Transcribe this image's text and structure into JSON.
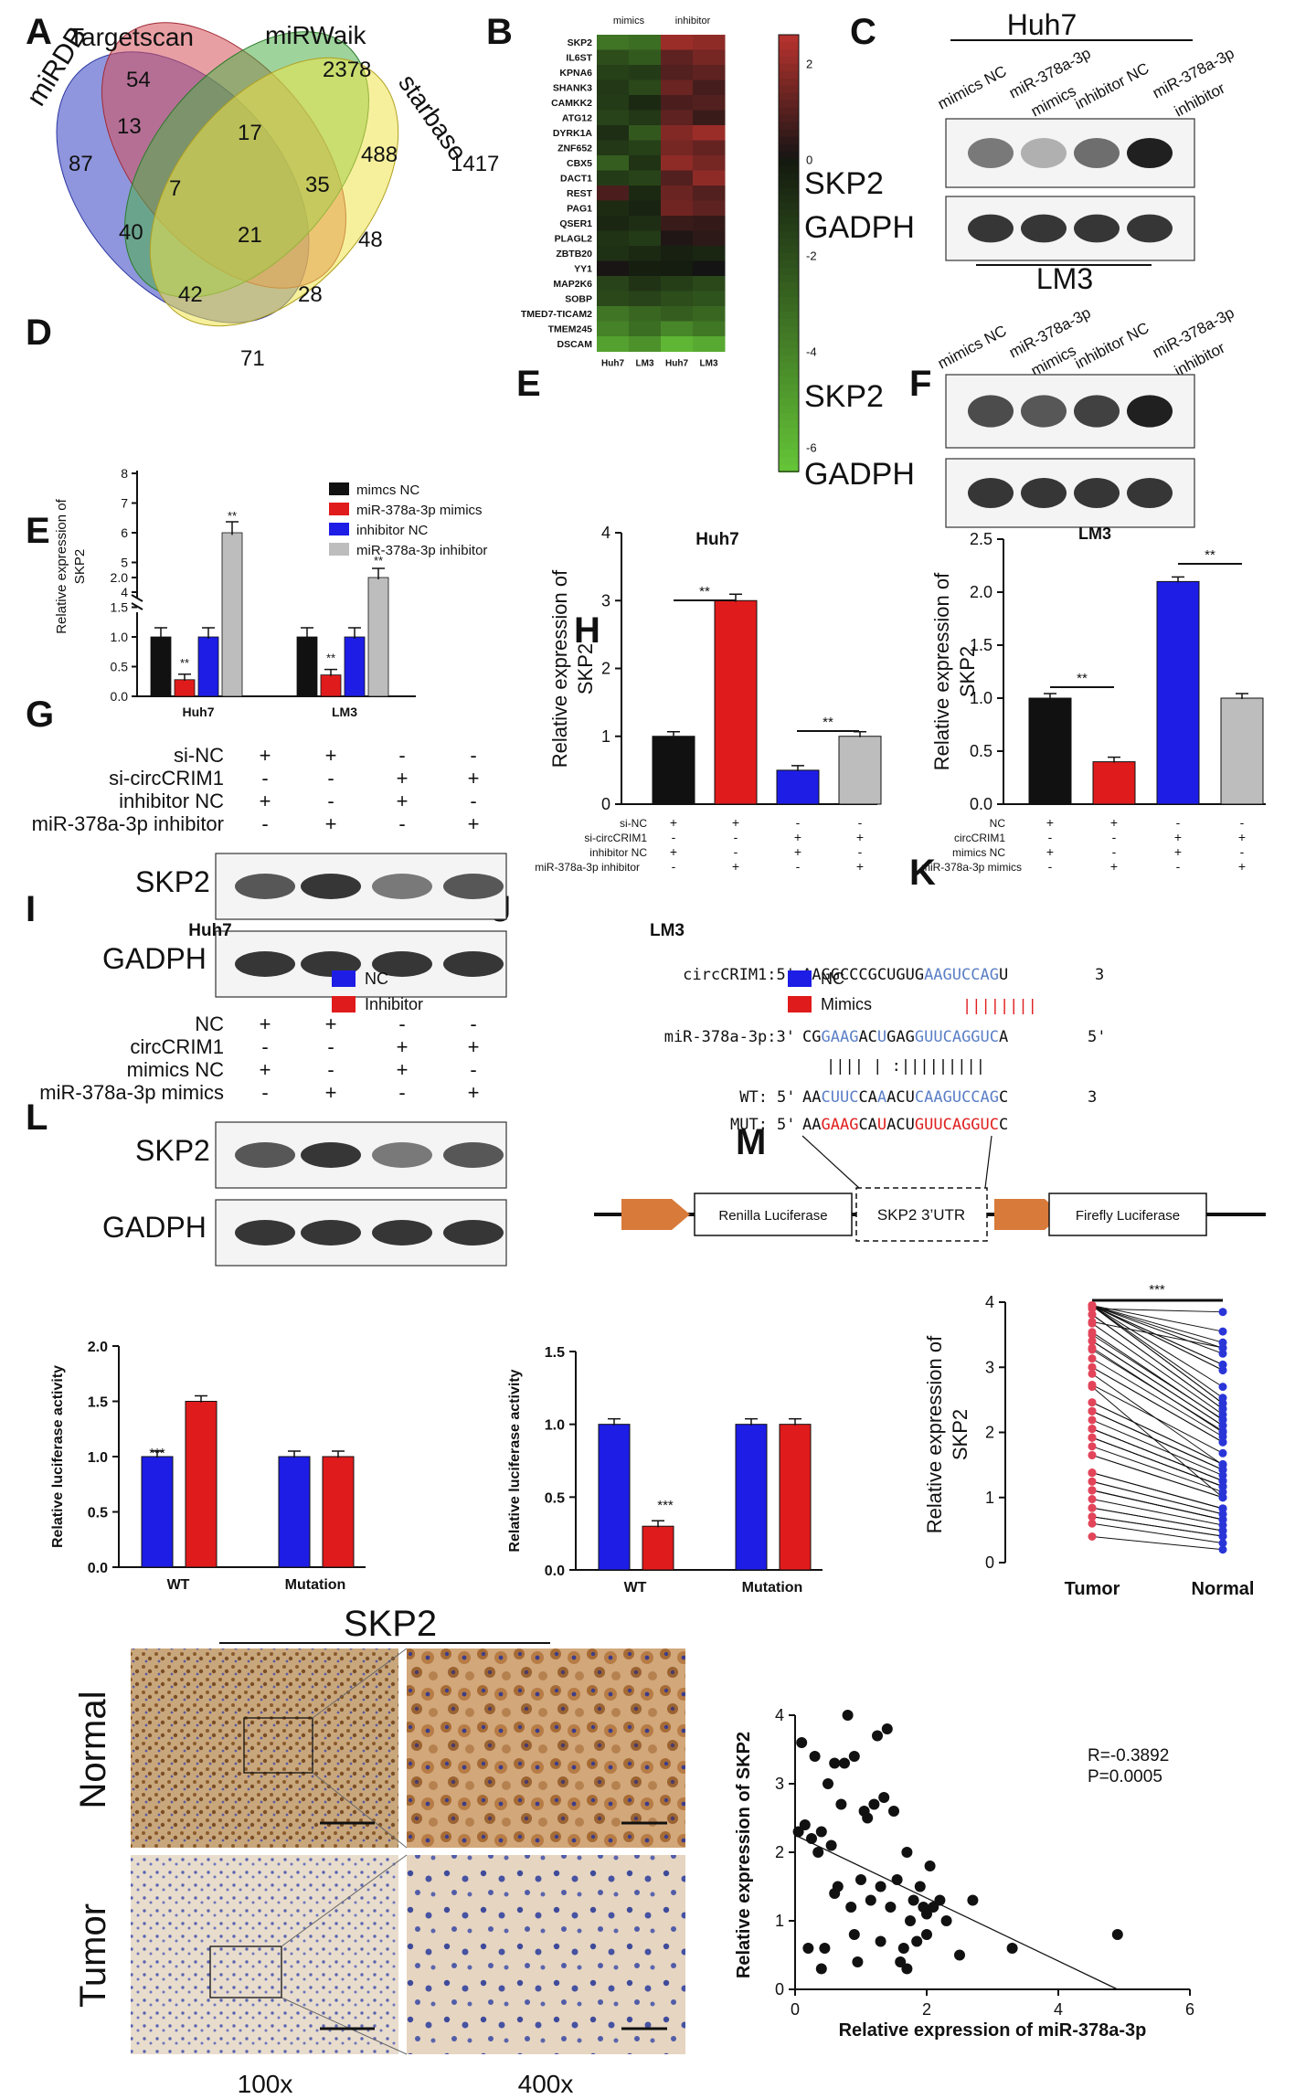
{
  "colors": {
    "black": "#111111",
    "red": "#e01b1b",
    "blue": "#1d1de6",
    "grey": "#bdbdbd",
    "venn_blue": "#4b55c8",
    "venn_red": "#d6505a",
    "venn_green": "#4fb04a",
    "venn_yellow": "#efe34a",
    "seq_blue": "#5b7fc6",
    "seq_red": "#e02020",
    "arrow": "#d87a3a",
    "dot_red": "#e2455a",
    "dot_blue": "#2a35d8"
  },
  "panel_letters": {
    "A": "A",
    "B": "B",
    "C": "C",
    "D": "D",
    "E": "E",
    "E2": "E",
    "F": "F",
    "G": "G",
    "H": "H",
    "I": "I",
    "J": "J",
    "K": "K",
    "L": "L",
    "M": "M"
  },
  "venn": {
    "labels": {
      "miRDB": "miRDB",
      "targetscan": "Targetscan",
      "mirwalk": "miRWaik",
      "starbase": "starbase"
    },
    "numbers": [
      "54",
      "2378",
      "87",
      "13",
      "17",
      "488",
      "1417",
      "7",
      "35",
      "40",
      "21",
      "48",
      "42",
      "28",
      "71"
    ]
  },
  "heatmap": {
    "top_labels": {
      "mimics": "mimics",
      "inhibitor": "inhibitor"
    },
    "genes": [
      "SKP2",
      "IL6ST",
      "KPNA6",
      "SHANK3",
      "CAMKK2",
      "ATG12",
      "DYRK1A",
      "ZNF652",
      "CBX5",
      "DACT1",
      "REST",
      "PAG1",
      "QSER1",
      "PLAGL2",
      "ZBTB20",
      "YY1",
      "MAP2K6",
      "SOBP",
      "TMED7-TICAM2",
      "TMEM245",
      "DSCAM"
    ],
    "cols": [
      "Huh7",
      "LM3",
      "Huh7",
      "LM3"
    ],
    "colorbar_ticks": [
      "2",
      "0",
      "-2",
      "-4",
      "-6"
    ],
    "values": [
      [
        -3.5,
        -3.2,
        2.2,
        2.0
      ],
      [
        -2.0,
        -2.5,
        1.2,
        1.6
      ],
      [
        -1.5,
        -1.3,
        1.0,
        1.2
      ],
      [
        -1.2,
        -1.8,
        1.4,
        0.8
      ],
      [
        -1.3,
        -0.6,
        0.9,
        1.0
      ],
      [
        -1.6,
        -1.2,
        1.2,
        0.6
      ],
      [
        -0.8,
        -2.4,
        1.8,
        2.2
      ],
      [
        -1.2,
        -1.5,
        1.6,
        1.3
      ],
      [
        -2.6,
        -1.0,
        2.0,
        1.6
      ],
      [
        -1.3,
        -1.6,
        1.0,
        2.0
      ],
      [
        0.9,
        -0.6,
        1.4,
        1.0
      ],
      [
        -0.7,
        -0.4,
        1.5,
        1.2
      ],
      [
        -0.5,
        -0.8,
        0.6,
        0.5
      ],
      [
        -1.0,
        -1.3,
        0.2,
        0.4
      ],
      [
        -0.9,
        -0.6,
        -0.3,
        -0.5
      ],
      [
        0.1,
        -0.2,
        -0.1,
        0.0
      ],
      [
        -1.6,
        -1.0,
        -1.4,
        -1.8
      ],
      [
        -1.8,
        -1.6,
        -2.0,
        -2.2
      ],
      [
        -3.5,
        -3.0,
        -2.6,
        -3.0
      ],
      [
        -4.0,
        -3.2,
        -4.2,
        -3.6
      ],
      [
        -5.2,
        -4.6,
        -6.0,
        -5.5
      ]
    ]
  },
  "blot_C": {
    "huh7_title": "Huh7",
    "lm3_title": "LM3",
    "lm3_bottom": "LM3",
    "lanes": [
      "mimics NC",
      "miR-378a-3p mimics",
      "inhibitor NC",
      "miR-378a-3p inhibitor"
    ],
    "row1": "SKP2",
    "row2": "GADPH"
  },
  "panel_D": {
    "ylabel": "Relative expression of SKP2",
    "legend": [
      "mimcs NC",
      "miR-378a-3p mimics",
      "inhibitor NC",
      "miR-378a-3p inhibitor"
    ],
    "groups": [
      "Huh7",
      "LM3"
    ],
    "ticks_low": [
      "0.0",
      "0.5",
      "1.0",
      "1.5",
      "2.0"
    ],
    "ticks_high": [
      "4",
      "5",
      "6",
      "7",
      "8"
    ],
    "sig": "**"
  },
  "chart_data": [
    {
      "type": "bar",
      "id": "D",
      "categories": [
        "Huh7",
        "LM3"
      ],
      "series": [
        {
          "name": "mimcs NC",
          "values": [
            1.0,
            1.0
          ]
        },
        {
          "name": "miR-378a-3p mimics",
          "values": [
            0.28,
            0.36
          ]
        },
        {
          "name": "inhibitor NC",
          "values": [
            1.0,
            1.0
          ]
        },
        {
          "name": "miR-378a-3p inhibitor",
          "values": [
            6.0,
            2.0
          ]
        }
      ],
      "ylabel": "Relative expression of SKP2"
    },
    {
      "type": "bar",
      "id": "E",
      "title": "Huh7",
      "categories": [
        "1",
        "2",
        "3",
        "4"
      ],
      "values": [
        1.0,
        3.0,
        0.5,
        1.0
      ],
      "ylim": [
        0,
        4
      ],
      "ylabel": "Relative expression of SKP2"
    },
    {
      "type": "bar",
      "id": "F",
      "categories": [
        "1",
        "2",
        "3",
        "4"
      ],
      "values": [
        1.0,
        0.4,
        2.1,
        1.0
      ],
      "ylim": [
        0,
        2.5
      ],
      "ylabel": "Relative expression of SKP2"
    },
    {
      "type": "bar",
      "id": "I",
      "title": "Huh7",
      "categories": [
        "WT",
        "Mutation"
      ],
      "series": [
        {
          "name": "NC",
          "values": [
            1.0,
            1.0
          ]
        },
        {
          "name": "Inhibitor",
          "values": [
            1.5,
            1.0
          ]
        }
      ],
      "ylim": [
        0,
        2.0
      ],
      "ylabel": "Relative luciferase activity"
    },
    {
      "type": "bar",
      "id": "J",
      "title": "LM3",
      "categories": [
        "WT",
        "Mutation"
      ],
      "series": [
        {
          "name": "NC",
          "values": [
            1.0,
            1.0
          ]
        },
        {
          "name": "Mimics",
          "values": [
            0.3,
            1.0
          ]
        }
      ],
      "ylim": [
        0,
        1.5
      ],
      "ylabel": "Relative luciferase activity"
    },
    {
      "type": "scatter",
      "id": "M",
      "xlabel": "Relative expression of miR-378a-3p",
      "ylabel": "Relative expression of SKP2",
      "xlim": [
        0,
        6
      ],
      "ylim": [
        0,
        4
      ],
      "x": [
        0.05,
        0.1,
        0.15,
        0.2,
        0.25,
        0.3,
        0.35,
        0.4,
        0.45,
        0.5,
        0.55,
        0.6,
        0.65,
        0.7,
        0.75,
        0.8,
        0.85,
        0.9,
        0.95,
        1.0,
        1.05,
        1.1,
        1.15,
        1.2,
        1.25,
        1.3,
        1.35,
        1.4,
        1.45,
        1.5,
        1.55,
        1.6,
        1.65,
        1.7,
        1.75,
        1.8,
        1.85,
        1.9,
        1.95,
        2.0,
        2.05,
        2.1,
        2.2,
        2.3,
        2.5,
        2.7,
        3.3,
        4.9,
        0.4,
        0.9,
        1.3,
        1.7,
        2.0,
        0.6
      ],
      "y": [
        2.3,
        3.6,
        2.4,
        0.6,
        2.2,
        3.4,
        2.0,
        2.3,
        0.6,
        3.0,
        2.1,
        3.3,
        1.5,
        2.7,
        3.3,
        4.0,
        1.2,
        3.4,
        0.4,
        1.6,
        2.6,
        2.5,
        1.3,
        2.7,
        3.7,
        1.5,
        2.8,
        3.8,
        1.2,
        2.6,
        1.6,
        0.4,
        0.6,
        2.0,
        1.0,
        1.3,
        0.7,
        1.5,
        1.2,
        0.8,
        1.8,
        1.2,
        1.3,
        1.0,
        0.5,
        1.3,
        0.6,
        0.8,
        0.3,
        0.8,
        0.7,
        0.3,
        1.1,
        1.4
      ]
    }
  ],
  "panel_E": {
    "title": "Huh7",
    "ylabel": "Relative expression of SKP2",
    "ticks": [
      "0",
      "1",
      "2",
      "3",
      "4"
    ],
    "row_labels": [
      "si-NC",
      "si-circCRIM1",
      "inhibitor NC",
      "miR-378a-3p inhibitor"
    ],
    "signs": [
      [
        "+",
        "+",
        "-",
        "-"
      ],
      [
        "-",
        "-",
        "+",
        "+"
      ],
      [
        "+",
        "-",
        "+",
        "-"
      ],
      [
        "-",
        "+",
        "-",
        "+"
      ]
    ],
    "sig": "**"
  },
  "panel_F": {
    "ylabel": "Relative expression of SKP2",
    "ticks": [
      "0.0",
      "0.5",
      "1.0",
      "1.5",
      "2.0",
      "2.5"
    ],
    "row_labels": [
      "NC",
      "circCRIM1",
      "mimics NC",
      "miR-378a-3p mimics"
    ],
    "signs": [
      [
        "+",
        "+",
        "-",
        "-"
      ],
      [
        "-",
        "-",
        "+",
        "+"
      ],
      [
        "+",
        "-",
        "+",
        "-"
      ],
      [
        "-",
        "+",
        "-",
        "+"
      ]
    ],
    "sig": "**"
  },
  "blot_E": {
    "row_labels": [
      "si-NC",
      "si-circCRIM1",
      "inhibitor NC",
      "miR-378a-3p inhibitor"
    ],
    "signs": [
      [
        "+",
        "+",
        "-",
        "-"
      ],
      [
        "-",
        "-",
        "+",
        "+"
      ],
      [
        "+",
        "-",
        "+",
        "-"
      ],
      [
        "-",
        "+",
        "-",
        "+"
      ]
    ],
    "row1": "SKP2",
    "row2": "GADPH"
  },
  "blot_G": {
    "row_labels": [
      "NC",
      "circCRIM1",
      "mimics NC",
      "miR-378a-3p mimics"
    ],
    "signs": [
      [
        "+",
        "+",
        "-",
        "-"
      ],
      [
        "-",
        "-",
        "+",
        "+"
      ],
      [
        "+",
        "-",
        "+",
        "-"
      ],
      [
        "-",
        "+",
        "-",
        "+"
      ]
    ],
    "row1": "SKP2",
    "row2": "GADPH"
  },
  "panel_H": {
    "circ_prefix": "circCRIM1:5'",
    "circ_seq_black": "AAGGCCCGCUGUG",
    "circ_seq_blue": "AAGUCCAG",
    "circ_seq_end": "U",
    "end3": "3",
    "pair1": "||||||||",
    "mir_prefix": "miR-378a-3p:3'",
    "mir_parts": [
      [
        "CG",
        "k"
      ],
      [
        "GAAG",
        "b"
      ],
      [
        "AC",
        "k"
      ],
      [
        "U",
        "b"
      ],
      [
        "GAG",
        "k"
      ],
      [
        "GUUCAGGUC",
        "b"
      ],
      [
        "A",
        "k"
      ]
    ],
    "end5": "5'",
    "pair2": "||||  |    :|||||||||",
    "wt_prefix": "WT:",
    "wt_5": "5'",
    "wt_parts": [
      [
        "AA",
        "k"
      ],
      [
        "CUUC",
        "b"
      ],
      [
        "CA",
        "k"
      ],
      [
        "A",
        "b"
      ],
      [
        "ACU",
        "k"
      ],
      [
        "CAAGUCCAG",
        "b"
      ],
      [
        "C",
        "k"
      ]
    ],
    "mut_prefix": "MUT:",
    "mut_5": "5'",
    "mut_parts": [
      [
        "AA",
        "k"
      ],
      [
        "GAAG",
        "r"
      ],
      [
        "CA",
        "k"
      ],
      [
        "U",
        "r"
      ],
      [
        "ACU",
        "k"
      ],
      [
        "GUUCAGGUC",
        "r"
      ],
      [
        "C",
        "k"
      ]
    ],
    "renilla": "Renilla Luciferase",
    "utr": "SKP2 3’UTR",
    "firefly": "Firefly Luciferase"
  },
  "panel_I": {
    "title": "Huh7",
    "ylabel": "Relative luciferase activity",
    "ticks": [
      "0.0",
      "0.5",
      "1.0",
      "1.5",
      "2.0"
    ],
    "legend": [
      "NC",
      "Inhibitor"
    ],
    "groups": [
      "WT",
      "Mutation"
    ],
    "sig": "***"
  },
  "panel_J": {
    "title": "LM3",
    "ylabel": "Relative luciferase activity",
    "ticks": [
      "0.0",
      "0.5",
      "1.0",
      "1.5"
    ],
    "legend": [
      "NC",
      "Mimics"
    ],
    "groups": [
      "WT",
      "Mutation"
    ],
    "sig": "***"
  },
  "panel_K": {
    "ylabel": "Relative expression of SKP2",
    "ticks": [
      "0",
      "1",
      "2",
      "3",
      "4"
    ],
    "groups": [
      "Tumor",
      "Normal"
    ],
    "sig": "***"
  },
  "panel_L": {
    "title": "SKP2",
    "row1": "Normal",
    "row2": "Tumor",
    "col1": "100x",
    "col2": "400x"
  },
  "panel_M": {
    "ylabel": "Relative expression of SKP2",
    "xlabel": "Relative expression of miR-378a-3p",
    "ticks_x": [
      "0",
      "2",
      "4",
      "6"
    ],
    "ticks_y": [
      "0",
      "1",
      "2",
      "3",
      "4"
    ],
    "r_text": "R=-0.3892",
    "p_text": "P=0.0005"
  }
}
